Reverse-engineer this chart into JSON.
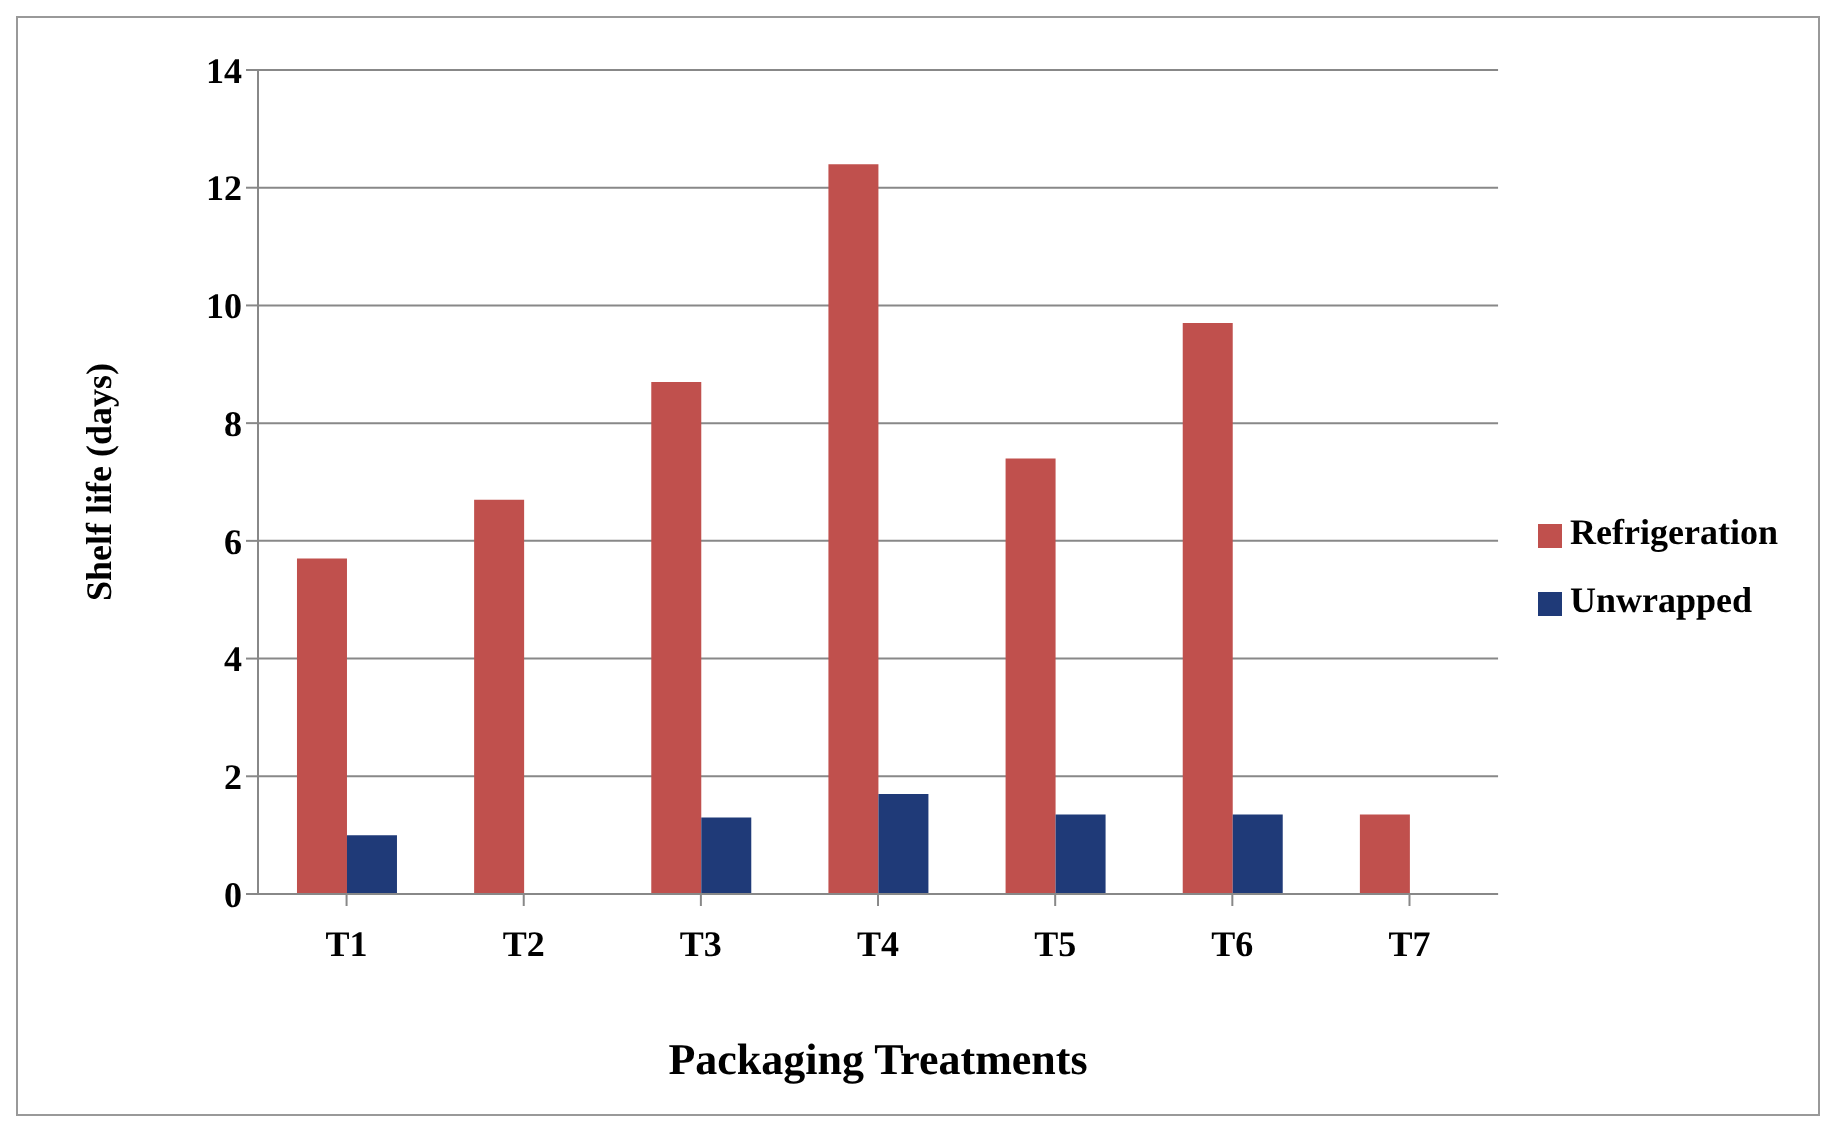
{
  "chart_data": {
    "type": "bar",
    "xlabel": "Packaging Treatments",
    "ylabel": "Shelf life (days)",
    "categories": [
      "T1",
      "T2",
      "T3",
      "T4",
      "T5",
      "T6",
      "T7"
    ],
    "series": [
      {
        "name": "Refrigeration",
        "color": "#c0504d",
        "values": [
          5.7,
          6.7,
          8.7,
          12.4,
          7.4,
          9.7,
          1.35
        ]
      },
      {
        "name": "Unwrapped",
        "color": "#1f3a78",
        "values": [
          1.0,
          null,
          1.3,
          1.7,
          1.35,
          1.35,
          null
        ]
      }
    ],
    "ylim": [
      0,
      14
    ],
    "yticks": [
      0,
      2,
      4,
      6,
      8,
      10,
      12,
      14
    ],
    "grid": "y",
    "legend": "right"
  }
}
